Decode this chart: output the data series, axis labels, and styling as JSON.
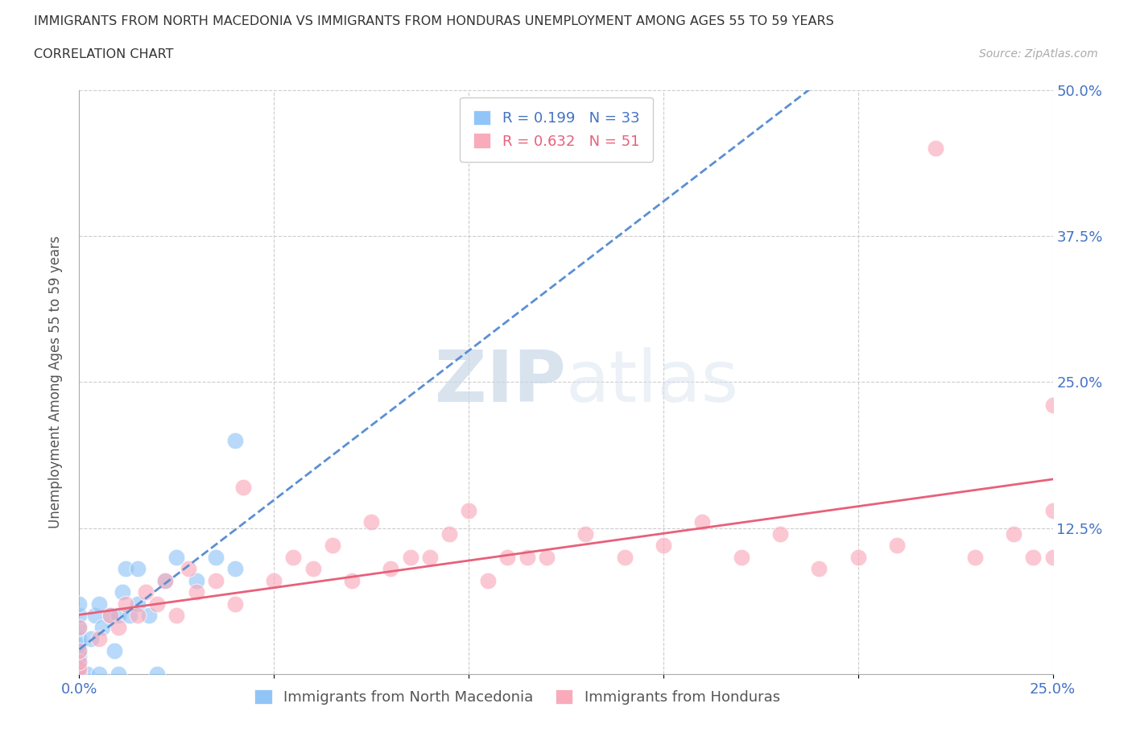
{
  "title_line1": "IMMIGRANTS FROM NORTH MACEDONIA VS IMMIGRANTS FROM HONDURAS UNEMPLOYMENT AMONG AGES 55 TO 59 YEARS",
  "title_line2": "CORRELATION CHART",
  "source_text": "Source: ZipAtlas.com",
  "ylabel": "Unemployment Among Ages 55 to 59 years",
  "xlim": [
    0.0,
    0.25
  ],
  "ylim": [
    0.0,
    0.5
  ],
  "color_macedonia": "#92C5F7",
  "color_honduras": "#F9AABB",
  "line_color_macedonia": "#5B8FD4",
  "line_color_honduras": "#E8607A",
  "watermark_zip": "ZIP",
  "watermark_atlas": "atlas",
  "nm_x": [
    0.0,
    0.0,
    0.0,
    0.0,
    0.0,
    0.0,
    0.0,
    0.0,
    0.0,
    0.0,
    0.002,
    0.003,
    0.004,
    0.005,
    0.005,
    0.006,
    0.008,
    0.009,
    0.01,
    0.01,
    0.011,
    0.012,
    0.013,
    0.015,
    0.015,
    0.018,
    0.02,
    0.022,
    0.025,
    0.03,
    0.035,
    0.04,
    0.04
  ],
  "nm_y": [
    0.0,
    0.005,
    0.01,
    0.015,
    0.02,
    0.025,
    0.03,
    0.04,
    0.05,
    0.06,
    0.0,
    0.03,
    0.05,
    0.0,
    0.06,
    0.04,
    0.05,
    0.02,
    0.0,
    0.05,
    0.07,
    0.09,
    0.05,
    0.06,
    0.09,
    0.05,
    0.0,
    0.08,
    0.1,
    0.08,
    0.1,
    0.09,
    0.2
  ],
  "hn_x": [
    0.0,
    0.0,
    0.0,
    0.0,
    0.0,
    0.005,
    0.008,
    0.01,
    0.012,
    0.015,
    0.017,
    0.02,
    0.022,
    0.025,
    0.028,
    0.03,
    0.035,
    0.04,
    0.042,
    0.05,
    0.055,
    0.06,
    0.065,
    0.07,
    0.075,
    0.08,
    0.085,
    0.09,
    0.095,
    0.1,
    0.105,
    0.11,
    0.115,
    0.12,
    0.13,
    0.14,
    0.15,
    0.16,
    0.17,
    0.18,
    0.19,
    0.2,
    0.21,
    0.22,
    0.23,
    0.24,
    0.245,
    0.25,
    0.25,
    0.25
  ],
  "hn_y": [
    0.0,
    0.005,
    0.01,
    0.02,
    0.04,
    0.03,
    0.05,
    0.04,
    0.06,
    0.05,
    0.07,
    0.06,
    0.08,
    0.05,
    0.09,
    0.07,
    0.08,
    0.06,
    0.16,
    0.08,
    0.1,
    0.09,
    0.11,
    0.08,
    0.13,
    0.09,
    0.1,
    0.1,
    0.12,
    0.14,
    0.08,
    0.1,
    0.1,
    0.1,
    0.12,
    0.1,
    0.11,
    0.13,
    0.1,
    0.12,
    0.09,
    0.1,
    0.11,
    0.45,
    0.1,
    0.12,
    0.1,
    0.23,
    0.1,
    0.14
  ]
}
